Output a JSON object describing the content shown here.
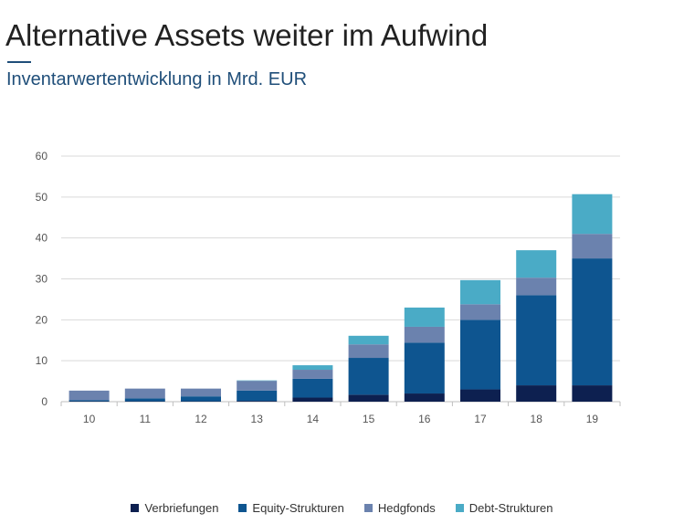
{
  "page": {
    "title": "Alternative Assets weiter im Aufwind",
    "subtitle": "Inventarwertentwicklung in Mrd. EUR"
  },
  "chart_data": {
    "type": "bar",
    "stacked": true,
    "categories": [
      "10",
      "11",
      "12",
      "13",
      "14",
      "15",
      "16",
      "17",
      "18",
      "19"
    ],
    "series": [
      {
        "name": "Verbriefungen",
        "color": "#0d2050",
        "values": [
          0.1,
          0.1,
          0.1,
          0.2,
          1.0,
          1.7,
          2.0,
          3.0,
          4.0,
          4.0
        ]
      },
      {
        "name": "Equity-Strukturen",
        "color": "#0e5590",
        "values": [
          0.3,
          0.7,
          1.2,
          2.5,
          4.6,
          9.0,
          12.4,
          17.0,
          22.0,
          31.0
        ]
      },
      {
        "name": "Hedgfonds",
        "color": "#6b82ae",
        "values": [
          2.3,
          2.4,
          1.9,
          2.4,
          2.2,
          3.3,
          3.9,
          3.8,
          4.3,
          6.0
        ]
      },
      {
        "name": "Debt-Strukturen",
        "color": "#4aabc6",
        "values": [
          0.0,
          0.0,
          0.0,
          0.1,
          1.1,
          2.1,
          4.7,
          5.9,
          6.7,
          9.7
        ]
      }
    ],
    "ylim": [
      0,
      60
    ],
    "yticks": [
      "0",
      "10",
      "20",
      "30",
      "40",
      "50",
      "60"
    ],
    "grid": true,
    "legend_position": "bottom"
  }
}
